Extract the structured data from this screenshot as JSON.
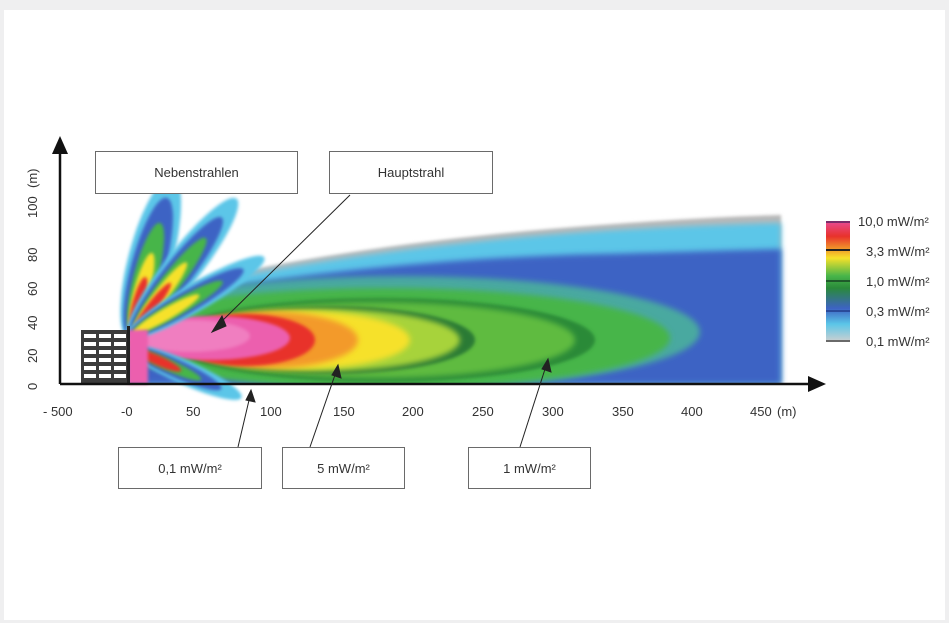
{
  "callouts": {
    "nebenstrahlen": "Nebenstrahlen",
    "hauptstrahl": "Hauptstrahl",
    "c01": "0,1 mW/m²",
    "c5": "5 mW/m²",
    "c1": "1 mW/m²"
  },
  "x_axis": {
    "ticks": [
      "- 500",
      "-0",
      "50",
      "100",
      "150",
      "200",
      "250",
      "300",
      "350",
      "400",
      "450"
    ],
    "unit": "(m)"
  },
  "y_axis": {
    "ticks": [
      "0",
      "20",
      "40",
      "60",
      "80",
      "100"
    ],
    "unit": "(m)"
  },
  "legend": {
    "entries": [
      "10,0 mW/m²",
      "3,3 mW/m²",
      "1,0 mW/m²",
      "0,3 mW/m²",
      "0,1 mW/m²"
    ]
  },
  "colors": {
    "pink": "#ec5fae",
    "red": "#e8322b",
    "yellow": "#f6e12a",
    "green": "#47b54a",
    "blue": "#3d63c4",
    "cyan": "#5bc6e8",
    "gray": "#b8b8b8",
    "legend_line": "#7a2d6a"
  }
}
